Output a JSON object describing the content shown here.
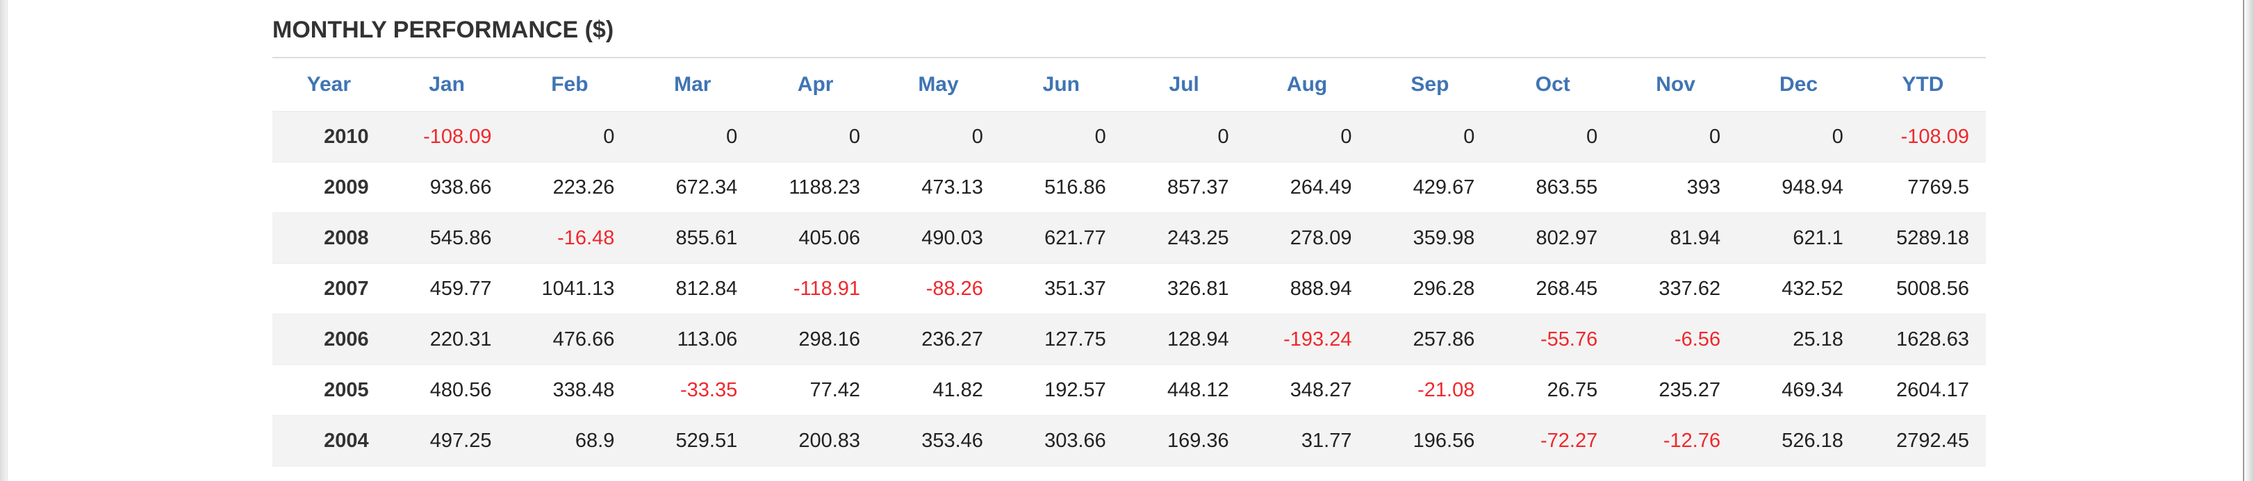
{
  "section_title": "MONTHLY PERFORMANCE ($)",
  "columns": [
    "Year",
    "Jan",
    "Feb",
    "Mar",
    "Apr",
    "May",
    "Jun",
    "Jul",
    "Aug",
    "Sep",
    "Oct",
    "Nov",
    "Dec",
    "YTD"
  ],
  "rows": [
    [
      "2010",
      "-108.09",
      "0",
      "0",
      "0",
      "0",
      "0",
      "0",
      "0",
      "0",
      "0",
      "0",
      "0",
      "-108.09"
    ],
    [
      "2009",
      "938.66",
      "223.26",
      "672.34",
      "1188.23",
      "473.13",
      "516.86",
      "857.37",
      "264.49",
      "429.67",
      "863.55",
      "393",
      "948.94",
      "7769.5"
    ],
    [
      "2008",
      "545.86",
      "-16.48",
      "855.61",
      "405.06",
      "490.03",
      "621.77",
      "243.25",
      "278.09",
      "359.98",
      "802.97",
      "81.94",
      "621.1",
      "5289.18"
    ],
    [
      "2007",
      "459.77",
      "1041.13",
      "812.84",
      "-118.91",
      "-88.26",
      "351.37",
      "326.81",
      "888.94",
      "296.28",
      "268.45",
      "337.62",
      "432.52",
      "5008.56"
    ],
    [
      "2006",
      "220.31",
      "476.66",
      "113.06",
      "298.16",
      "236.27",
      "127.75",
      "128.94",
      "-193.24",
      "257.86",
      "-55.76",
      "-6.56",
      "25.18",
      "1628.63"
    ],
    [
      "2005",
      "480.56",
      "338.48",
      "-33.35",
      "77.42",
      "41.82",
      "192.57",
      "448.12",
      "348.27",
      "-21.08",
      "26.75",
      "235.27",
      "469.34",
      "2604.17"
    ],
    [
      "2004",
      "497.25",
      "68.9",
      "529.51",
      "200.83",
      "353.46",
      "303.66",
      "169.36",
      "31.77",
      "196.56",
      "-72.27",
      "-12.76",
      "526.18",
      "2792.45"
    ]
  ],
  "colors": {
    "header_text": "#3f74b4",
    "negative": "#f0282c",
    "stripe": "#f3f3f3"
  }
}
